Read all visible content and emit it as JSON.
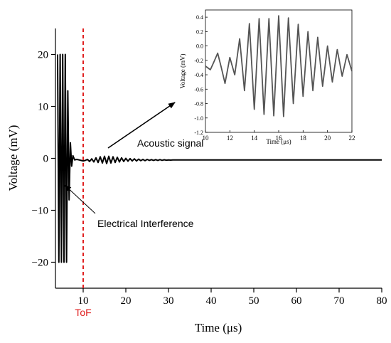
{
  "chart_data": [
    {
      "type": "line",
      "xlabel": "Time (μs)",
      "ylabel": "Voltage (mV)",
      "xlim": [
        3.5,
        80
      ],
      "ylim": [
        -25,
        25
      ],
      "xticks": [
        10,
        20,
        30,
        40,
        50,
        60,
        70,
        80
      ],
      "xtick_labels": [
        "10",
        "20",
        "30",
        "40",
        "50",
        "60",
        "70",
        "80"
      ],
      "yticks": [
        -20,
        -10,
        0,
        10,
        20
      ],
      "ytick_labels": [
        "−20",
        "−10",
        "0",
        "10",
        "20"
      ],
      "series": [
        {
          "color": "#000000",
          "x": [
            4.0,
            4.3,
            4.6,
            4.9,
            5.2,
            5.5,
            5.8,
            6.1,
            6.4,
            6.7,
            7.0,
            7.3,
            7.6,
            8.0,
            8.5,
            9.0,
            9.5,
            10.0,
            10.5,
            11.0,
            11.5,
            12.0,
            12.5,
            13.0,
            13.5,
            14.0,
            14.5,
            15.0,
            15.5,
            16.0,
            16.5,
            17.0,
            17.5,
            18.0,
            18.5,
            19.0,
            19.5,
            20.0,
            20.5,
            21.0,
            21.5,
            22.0,
            22.5,
            23.0,
            23.5,
            24.0,
            24.5,
            25.0,
            25.5,
            26.0,
            26.5,
            27.0,
            27.5,
            28.0,
            28.5,
            29.0,
            29.5,
            30.0,
            30.5,
            31.0,
            31.5,
            32.0,
            33.0,
            34.0,
            36.0,
            38.0,
            40.0,
            45.0,
            50.0,
            55.0,
            60.0,
            65.0,
            70.0,
            75.0,
            80.0
          ],
          "y": [
            20,
            -20,
            20,
            -20,
            20,
            -20,
            20,
            -20,
            13,
            -8,
            3,
            -1.5,
            0.5,
            -0.3,
            -0.2,
            -0.3,
            -0.4,
            -0.5,
            -0.4,
            -0.2,
            -0.6,
            -0.1,
            -0.7,
            0.1,
            -0.8,
            0.3,
            -0.9,
            0.4,
            -1.0,
            0.4,
            -0.9,
            0.3,
            -0.8,
            0.2,
            -0.7,
            0.1,
            -0.6,
            0.0,
            -0.55,
            -0.05,
            -0.5,
            -0.1,
            -0.5,
            -0.15,
            -0.45,
            -0.2,
            -0.45,
            -0.2,
            -0.4,
            -0.25,
            -0.4,
            -0.25,
            -0.4,
            -0.25,
            -0.38,
            -0.28,
            -0.36,
            -0.3,
            -0.34,
            -0.3,
            -0.32,
            -0.3,
            -0.3,
            -0.3,
            -0.3,
            -0.3,
            -0.3,
            -0.3,
            -0.3,
            -0.3,
            -0.3,
            -0.3,
            -0.3,
            -0.3,
            -0.3
          ]
        }
      ],
      "annotations": {
        "tof_label": "ToF",
        "tof_x": 10,
        "tof_color": "#e02020",
        "acoustic_label": "Acoustic signal",
        "interference_label": "Electrical Interference"
      }
    },
    {
      "type": "line",
      "xlabel": "Time (μs)",
      "ylabel": "Voltage (mV)",
      "xlim": [
        10,
        22
      ],
      "ylim": [
        -1.2,
        0.5
      ],
      "xticks": [
        10,
        12,
        14,
        16,
        18,
        20,
        22
      ],
      "xtick_labels": [
        "10",
        "12",
        "14",
        "16",
        "18",
        "20",
        "22"
      ],
      "yticks": [
        0.4,
        0.2,
        0.0,
        -0.2,
        -0.4,
        -0.6,
        -0.8,
        -1.0,
        -1.2
      ],
      "ytick_labels": [
        "0.4",
        "0.2",
        "0.0",
        "-0.2",
        "-0.4",
        "-0.6",
        "-0.8",
        "-1.0",
        "-1.2"
      ],
      "series": [
        {
          "color": "#555555",
          "x": [
            10.0,
            10.4,
            10.7,
            11.0,
            11.3,
            11.6,
            12.0,
            12.4,
            12.8,
            13.2,
            13.6,
            14.0,
            14.4,
            14.8,
            15.2,
            15.6,
            16.0,
            16.4,
            16.8,
            17.2,
            17.6,
            18.0,
            18.4,
            18.8,
            19.2,
            19.6,
            20.0,
            20.4,
            20.8,
            21.2,
            21.6,
            22.0
          ],
          "y": [
            -0.28,
            -0.33,
            -0.22,
            -0.1,
            -0.3,
            -0.52,
            -0.16,
            -0.4,
            0.1,
            -0.62,
            0.31,
            -0.88,
            0.38,
            -0.95,
            0.38,
            -0.97,
            0.42,
            -0.98,
            0.39,
            -0.8,
            0.3,
            -0.7,
            0.2,
            -0.62,
            0.12,
            -0.56,
            0.0,
            -0.5,
            -0.05,
            -0.42,
            -0.12,
            -0.35
          ]
        }
      ]
    }
  ]
}
